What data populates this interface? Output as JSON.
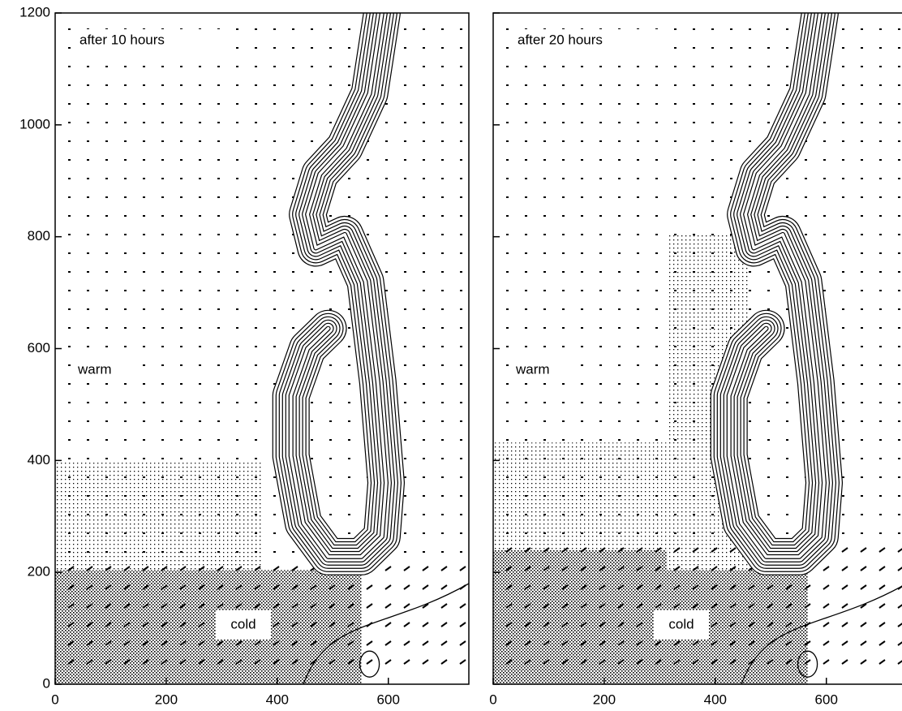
{
  "chart_data": [
    {
      "type": "vector-field",
      "annotations": [
        "after 10 hours",
        "warm",
        "cold"
      ],
      "xlim": [
        0,
        745
      ],
      "ylim": [
        0,
        1200
      ],
      "xticks": [
        0,
        200,
        400,
        600
      ],
      "yticks": [
        0,
        200,
        400,
        600,
        800,
        1000,
        1200
      ],
      "show_ytick_labels": true
    },
    {
      "type": "vector-field",
      "annotations": [
        "after 20 hours",
        "warm",
        "cold"
      ],
      "xlim": [
        0,
        745
      ],
      "ylim": [
        0,
        1200
      ],
      "xticks": [
        0,
        200,
        400,
        600
      ],
      "yticks": [
        0,
        200,
        400,
        600,
        800,
        1000,
        1200
      ],
      "show_ytick_labels": false
    }
  ]
}
